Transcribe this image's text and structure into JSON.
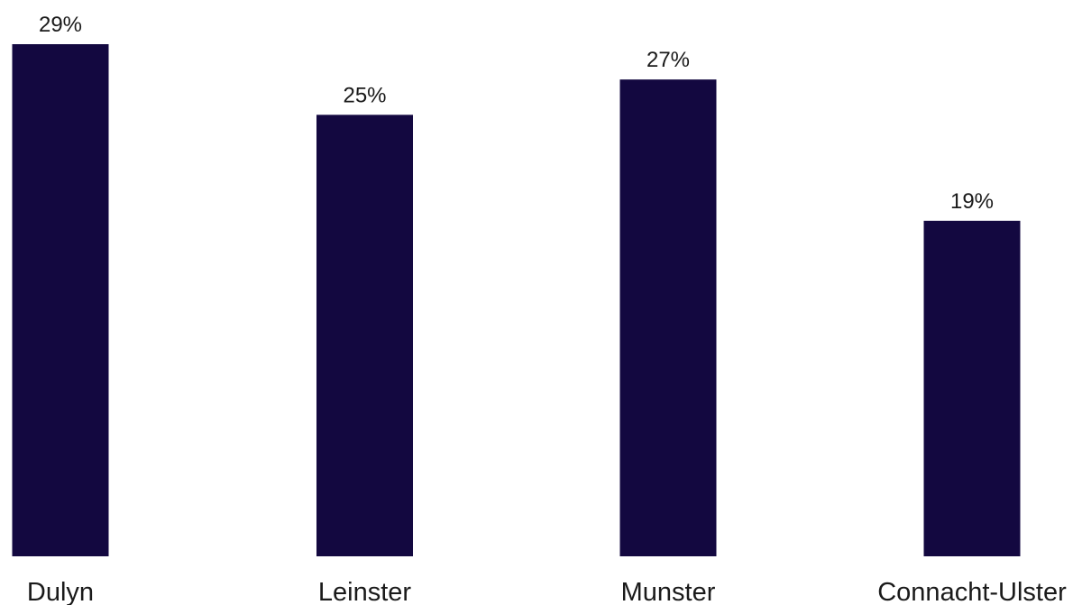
{
  "chart_data": {
    "type": "bar",
    "categories": [
      "Dulyn",
      "Leinster",
      "Munster",
      "Connacht-Ulster"
    ],
    "values": [
      29,
      25,
      27,
      19
    ],
    "value_labels": [
      "29%",
      "25%",
      "27%",
      "19%"
    ],
    "unit": "%",
    "ylim": [
      0,
      29
    ],
    "grid": false,
    "legend": "none",
    "bar_color": "#130840"
  }
}
